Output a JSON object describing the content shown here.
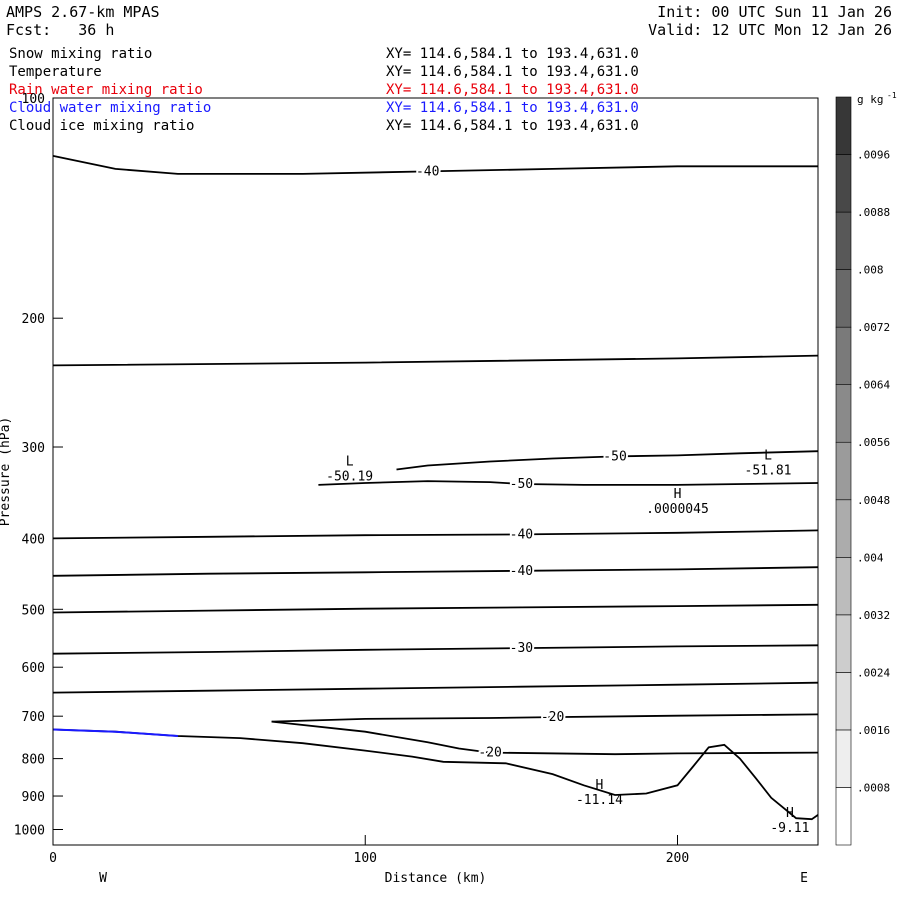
{
  "header": {
    "model": "AMPS 2.67-km MPAS",
    "forecast": "Fcst:   36 h",
    "init": "Init: 00 UTC Sun 11 Jan 26",
    "valid": "Valid: 12 UTC Mon 12 Jan 26"
  },
  "fields": [
    {
      "name": "Snow mixing ratio",
      "xy": "XY= 114.6,584.1 to 193.4,631.0",
      "color": "#000000"
    },
    {
      "name": "Temperature",
      "xy": "XY= 114.6,584.1 to 193.4,631.0",
      "color": "#000000"
    },
    {
      "name": "Rain water mixing ratio",
      "xy": "XY= 114.6,584.1 to 193.4,631.0",
      "color": "#e8000b"
    },
    {
      "name": "Cloud water mixing ratio",
      "xy": "XY= 114.6,584.1 to 193.4,631.0",
      "color": "#1a1aff"
    },
    {
      "name": "Cloud ice mixing ratio",
      "xy": "XY= 114.6,584.1 to 193.4,631.0",
      "color": "#000000"
    }
  ],
  "chart_data": {
    "type": "contour",
    "xlabel": "Distance (km)",
    "ylabel": "Pressure (hPa)",
    "xlim": [
      0,
      245
    ],
    "ylim": [
      1050,
      100
    ],
    "y_scale": "log",
    "x_ticks": [
      0,
      100,
      200
    ],
    "y_ticks": [
      100,
      200,
      300,
      400,
      500,
      600,
      700,
      800,
      900,
      1000
    ],
    "left_end_label": "W",
    "right_end_label": "E",
    "temperature_contours": [
      {
        "label": "-50",
        "points": [
          [
            110,
            322
          ],
          [
            120,
            318
          ],
          [
            140,
            314
          ],
          [
            160,
            311
          ],
          [
            180,
            309
          ],
          [
            200,
            308
          ],
          [
            220,
            306
          ],
          [
            245,
            304
          ]
        ]
      },
      {
        "label": "-50",
        "points": [
          [
            85,
            338
          ],
          [
            100,
            336
          ],
          [
            120,
            334
          ],
          [
            140,
            335
          ],
          [
            150,
            337
          ],
          [
            170,
            338
          ],
          [
            200,
            338
          ],
          [
            245,
            336
          ]
        ]
      },
      {
        "label": "-40",
        "points": [
          [
            0,
            400
          ],
          [
            50,
            398
          ],
          [
            100,
            396
          ],
          [
            150,
            395
          ],
          [
            200,
            393
          ],
          [
            245,
            390
          ]
        ]
      },
      {
        "label": "-40",
        "points": [
          [
            0,
            450
          ],
          [
            50,
            447
          ],
          [
            100,
            445
          ],
          [
            150,
            443
          ],
          [
            200,
            441
          ],
          [
            245,
            438
          ]
        ]
      },
      {
        "label": "",
        "points": [
          [
            0,
            505
          ],
          [
            50,
            502
          ],
          [
            100,
            499
          ],
          [
            150,
            497
          ],
          [
            200,
            495
          ],
          [
            245,
            493
          ]
        ]
      },
      {
        "label": "-30",
        "points": [
          [
            0,
            575
          ],
          [
            50,
            572
          ],
          [
            100,
            568
          ],
          [
            150,
            565
          ],
          [
            200,
            562
          ],
          [
            245,
            560
          ]
        ]
      },
      {
        "label": "",
        "points": [
          [
            0,
            650
          ],
          [
            50,
            646
          ],
          [
            100,
            642
          ],
          [
            150,
            638
          ],
          [
            200,
            634
          ],
          [
            245,
            630
          ]
        ]
      },
      {
        "label": "-20",
        "points": [
          [
            70,
            712
          ],
          [
            100,
            706
          ],
          [
            140,
            704
          ],
          [
            160,
            702
          ],
          [
            200,
            699
          ],
          [
            245,
            696
          ]
        ]
      },
      {
        "label": "-20",
        "points": [
          [
            70,
            712
          ],
          [
            100,
            735
          ],
          [
            120,
            760
          ],
          [
            130,
            775
          ],
          [
            140,
            785
          ],
          [
            180,
            789
          ],
          [
            200,
            787
          ],
          [
            245,
            785
          ]
        ]
      },
      {
        "label": "",
        "points": [
          [
            0,
            232
          ],
          [
            100,
            230
          ],
          [
            200,
            227
          ],
          [
            245,
            225
          ]
        ]
      }
    ],
    "temperature_contours_top": [
      {
        "label": "-40",
        "points": [
          [
            0,
            120
          ],
          [
            20,
            125
          ],
          [
            40,
            127
          ],
          [
            80,
            127
          ],
          [
            120,
            126
          ],
          [
            160,
            125
          ],
          [
            200,
            124
          ],
          [
            245,
            124
          ]
        ]
      }
    ],
    "terrain": [
      [
        0,
        730
      ],
      [
        20,
        735
      ],
      [
        40,
        745
      ],
      [
        60,
        750
      ],
      [
        80,
        762
      ],
      [
        100,
        780
      ],
      [
        115,
        795
      ],
      [
        125,
        808
      ],
      [
        145,
        812
      ],
      [
        160,
        840
      ],
      [
        170,
        870
      ],
      [
        180,
        897
      ],
      [
        190,
        893
      ],
      [
        200,
        870
      ],
      [
        205,
        820
      ],
      [
        210,
        772
      ],
      [
        215,
        766
      ],
      [
        220,
        800
      ],
      [
        225,
        850
      ],
      [
        230,
        905
      ],
      [
        238,
        965
      ],
      [
        243,
        968
      ],
      [
        245,
        955
      ]
    ],
    "extrema": [
      {
        "type": "L",
        "value": "-50.19",
        "x": 95,
        "p": 318
      },
      {
        "type": "L",
        "value": "-51.81",
        "x": 229,
        "p": 312
      },
      {
        "type": "H",
        "value": ".0000045",
        "x": 200,
        "p": 352
      },
      {
        "type": "H",
        "value": "-11.14",
        "x": 175,
        "p": 880
      },
      {
        "type": "H",
        "value": "-9.11",
        "x": 236,
        "p": 961
      }
    ],
    "colorbar": {
      "units": "g kg",
      "units_exp": "-1",
      "labels": [
        ".0008",
        ".0016",
        ".0024",
        ".0032",
        ".004",
        ".0048",
        ".0056",
        ".0064",
        ".0072",
        ".008",
        ".0088",
        ".0096"
      ]
    }
  }
}
